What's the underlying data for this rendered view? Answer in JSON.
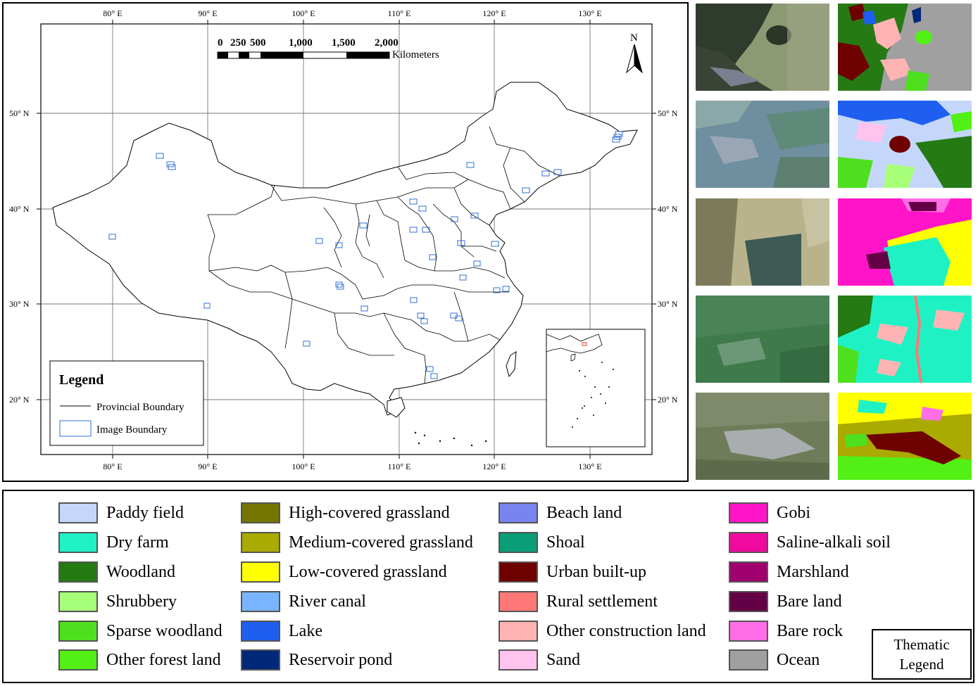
{
  "map": {
    "lon_labels": [
      "80° E",
      "90° E",
      "100° E",
      "110° E",
      "120° E",
      "130° E"
    ],
    "lat_labels": [
      "50° N",
      "40° N",
      "30° N",
      "20° N"
    ],
    "scale_numbers": [
      "0",
      "250",
      "500",
      "1,000",
      "1,500",
      "2,000"
    ],
    "scale_unit": "Kilometers",
    "north_label": "N",
    "legend_title": "Legend",
    "legend_items": [
      {
        "label": "Provincial Boundary",
        "symbol": "line"
      },
      {
        "label": "Image Boundary",
        "symbol": "box",
        "color": "#2f6fd6"
      }
    ],
    "image_boundary_color": "#2f6fd6"
  },
  "thematic_legend": {
    "title_line1": "Thematic",
    "title_line2": "Legend",
    "items": [
      {
        "label": "Paddy field",
        "color": "#c4d7fb"
      },
      {
        "label": "Dry farm",
        "color": "#1ef2c4"
      },
      {
        "label": "Woodland",
        "color": "#267a14"
      },
      {
        "label": "Shrubbery",
        "color": "#a8ff78"
      },
      {
        "label": "Sparse woodland",
        "color": "#4ee01e"
      },
      {
        "label": "Other forest land",
        "color": "#52f014"
      },
      {
        "label": "High-covered grassland",
        "color": "#747400"
      },
      {
        "label": "Medium-covered grassland",
        "color": "#aaaa00"
      },
      {
        "label": "Low-covered grassland",
        "color": "#ffff00"
      },
      {
        "label": "River canal",
        "color": "#78b4ff"
      },
      {
        "label": "Lake",
        "color": "#1e5ff0"
      },
      {
        "label": "Reservoir pond",
        "color": "#002878"
      },
      {
        "label": "Beach land",
        "color": "#7884f0"
      },
      {
        "label": "Shoal",
        "color": "#0a9e78"
      },
      {
        "label": "Urban built-up",
        "color": "#6e0000"
      },
      {
        "label": "Rural settlement",
        "color": "#ff7878"
      },
      {
        "label": "Other construction land",
        "color": "#ffb4b4"
      },
      {
        "label": "Sand",
        "color": "#ffc3f0"
      },
      {
        "label": "Gobi",
        "color": "#ff14c8"
      },
      {
        "label": "Saline-alkali soil",
        "color": "#f00aa0"
      },
      {
        "label": "Marshland",
        "color": "#a0006e"
      },
      {
        "label": "Bare land",
        "color": "#640046"
      },
      {
        "label": "Bare rock",
        "color": "#ff6ee6"
      },
      {
        "label": "Ocean",
        "color": "#a0a0a0"
      }
    ]
  }
}
